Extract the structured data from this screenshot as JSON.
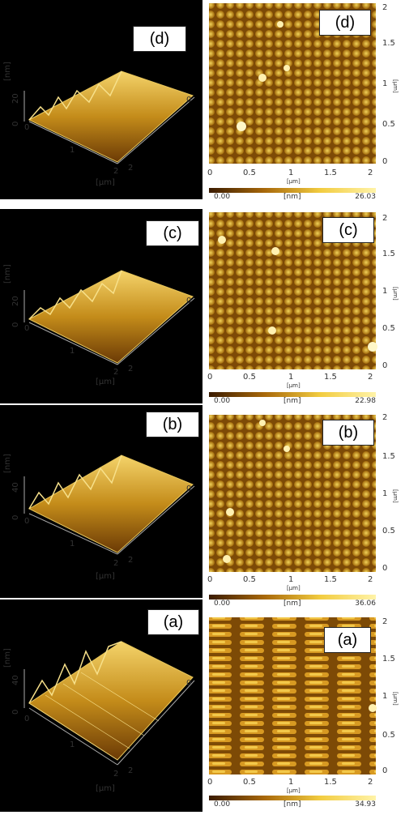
{
  "panels": [
    {
      "label": "(d)",
      "z_axis_label": "[nm]",
      "z_ticks": [
        "20",
        "0"
      ],
      "lateral_unit": "[µm]",
      "lateral_ticks_3d": [
        "0",
        "1",
        "2",
        "2",
        "0"
      ],
      "x_ticks_2d": [
        "0",
        "0.5",
        "1",
        "1.5",
        "2"
      ],
      "y_ticks_2d": [
        "2",
        "1.5",
        "1",
        "0.5",
        "0"
      ],
      "scale_min": "0.00",
      "scale_unit": "[nm]",
      "scale_max": "26.03"
    },
    {
      "label": "(c)",
      "z_axis_label": "[nm]",
      "z_ticks": [
        "20",
        "0"
      ],
      "lateral_unit": "[µm]",
      "lateral_ticks_3d": [
        "0",
        "1",
        "2",
        "2",
        "0"
      ],
      "x_ticks_2d": [
        "0",
        "0.5",
        "1",
        "1.5",
        "2"
      ],
      "y_ticks_2d": [
        "2",
        "1.5",
        "1",
        "0.5",
        "0"
      ],
      "scale_min": "0.00",
      "scale_unit": "[nm]",
      "scale_max": "22.98"
    },
    {
      "label": "(b)",
      "z_axis_label": "[nm]",
      "z_ticks": [
        "40",
        "0"
      ],
      "lateral_unit": "[µm]",
      "lateral_ticks_3d": [
        "0",
        "1",
        "2",
        "2",
        "0"
      ],
      "x_ticks_2d": [
        "0",
        "0.5",
        "1",
        "1.5",
        "2"
      ],
      "y_ticks_2d": [
        "2",
        "1.5",
        "1",
        "0.5",
        "0"
      ],
      "scale_min": "0.00",
      "scale_unit": "[nm]",
      "scale_max": "36.06"
    },
    {
      "label": "(a)",
      "z_axis_label": "[nm]",
      "z_ticks": [
        "40",
        "0"
      ],
      "lateral_unit": "[µm]",
      "lateral_ticks_3d": [
        "0",
        "1",
        "2",
        "2",
        "0"
      ],
      "x_ticks_2d": [
        "0",
        "0.5",
        "1",
        "1.5",
        "2"
      ],
      "y_ticks_2d": [
        "2",
        "1.5",
        "1",
        "0.5",
        "0"
      ],
      "scale_min": "0.00",
      "scale_unit": "[nm]",
      "scale_max": "34.93"
    }
  ],
  "colors": {
    "background_3d": "#000000",
    "afm_dark": "#5a2c00",
    "afm_mid": "#b8790a",
    "afm_light": "#f2d35a",
    "afm_peak": "#fff7c8"
  }
}
